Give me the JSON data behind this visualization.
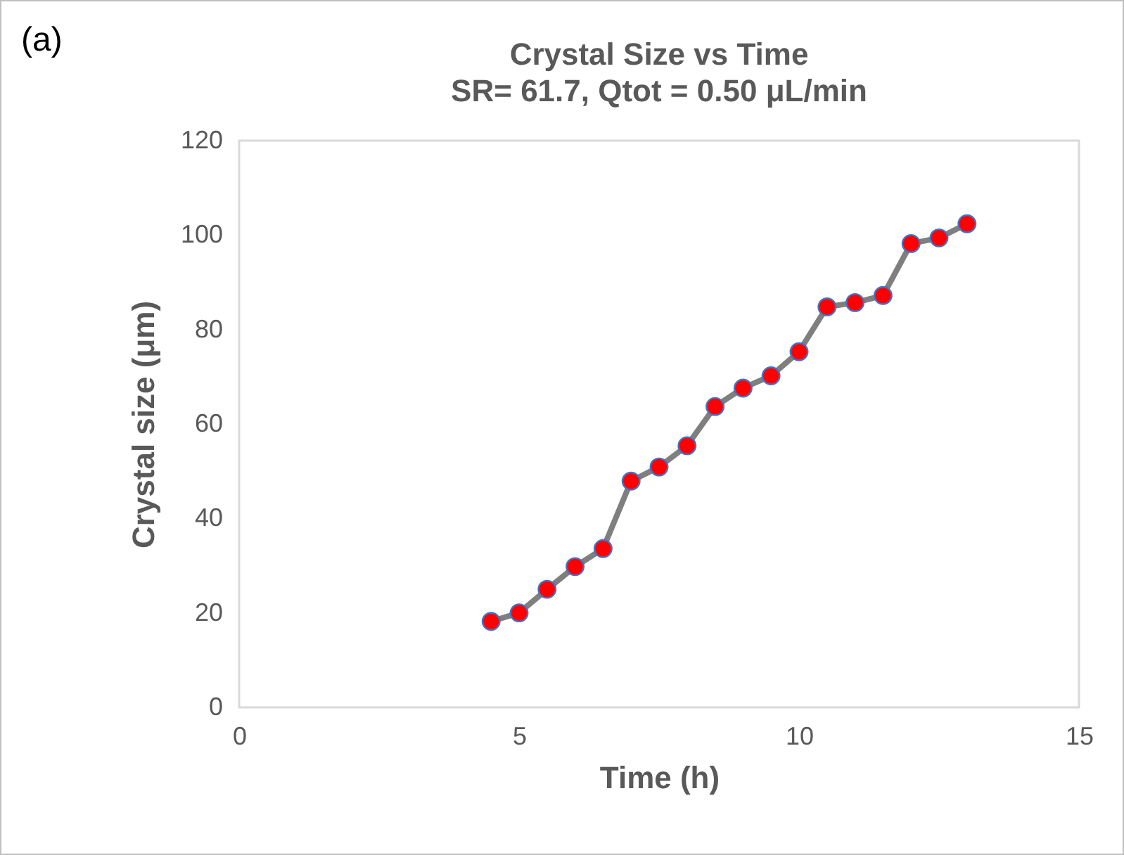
{
  "chart_data": {
    "type": "line",
    "title": "Crystal Size vs Time",
    "subtitle": "SR= 61.7, Qtot = 0.50 μL/min",
    "xlabel": "Time (h)",
    "ylabel": "Crystal size (μm)",
    "annotations": [
      "(a)"
    ],
    "x": [
      4.5,
      5,
      5.5,
      6,
      6.5,
      7,
      7.5,
      8,
      8.5,
      9,
      9.5,
      10,
      10.5,
      11,
      11.5,
      12,
      12.5,
      13
    ],
    "series": [
      {
        "color": "#7f7f7f",
        "colors": [
          "#ff0000",
          "#ff0000",
          "#ff0000",
          "#ff0000",
          "#ff0000",
          "#ff0000",
          "#ff0000",
          "#ff0000",
          "#ff0000",
          "#ff0000",
          "#ff0000",
          "#ff0000",
          "#ff0000",
          "#ff0000",
          "#ff0000",
          "#ff0000",
          "#ff0000",
          "#ff0000"
        ],
        "values": [
          18.2,
          20,
          25,
          29.8,
          33.6,
          47.9,
          50.9,
          55.4,
          63.7,
          67.6,
          70.2,
          75.3,
          84.8,
          85.7,
          87.2,
          98.2,
          99.4,
          102.4
        ]
      }
    ],
    "xlim": [
      0,
      15
    ],
    "xticks": [
      0,
      5,
      10,
      15
    ],
    "ylim": [
      0,
      120
    ],
    "yticks": [
      0,
      20,
      40,
      60,
      80,
      100,
      120
    ],
    "grid": false,
    "marker": "circle",
    "line_style": "solid"
  }
}
